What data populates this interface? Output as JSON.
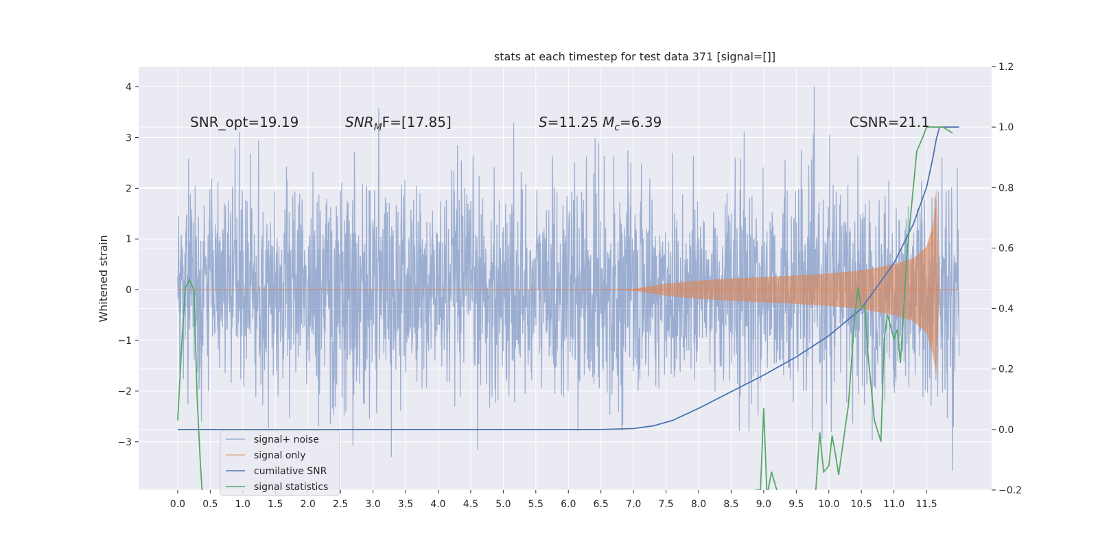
{
  "chart_data": {
    "type": "line",
    "title": "stats at each timestep for test data 371 [signal=[]]",
    "ylabel": "Whitened strain",
    "xlim": [
      -0.6,
      12.5
    ],
    "ylim": [
      -3.95,
      4.4
    ],
    "y2lim": [
      -0.2,
      1.2
    ],
    "xticks": [
      "0.0",
      "0.5",
      "1.0",
      "1.5",
      "2.0",
      "2.5",
      "3.0",
      "3.5",
      "4.0",
      "4.5",
      "5.0",
      "5.5",
      "6.0",
      "6.5",
      "7.0",
      "7.5",
      "8.0",
      "8.5",
      "9.0",
      "9.5",
      "10.0",
      "10.5",
      "11.0",
      "11.5"
    ],
    "yticks": [
      "4",
      "3",
      "2",
      "1",
      "0",
      "−1",
      "−2",
      "−3"
    ],
    "y2ticks": [
      "1.2",
      "1.0",
      "0.8",
      "0.6",
      "0.4",
      "0.2",
      "0.0",
      "−0.2"
    ],
    "grid": true,
    "legend_position": "lower-left",
    "annotations": {
      "snr_opt": "SNR_opt=19.19",
      "snr_mf_main": "SNR",
      "snr_mf_sub": "M",
      "snr_mf_rest": "F=[17.85]",
      "s_main": "S",
      "s_rest": "=11.25 ",
      "mc_main": "M",
      "mc_sub": "c",
      "mc_rest": "=6.39",
      "csnr": "CSNR=21.1"
    },
    "series": [
      {
        "name": "signal+ noise",
        "color": "#4c72b0",
        "opacity": 0.5,
        "axis": "left",
        "description_values": "noise envelope approx ±2.5 with peaks to 4.1"
      },
      {
        "name": "signal only",
        "color": "#dd8452",
        "opacity": 0.6,
        "axis": "left",
        "envelope_x": [
          0,
          6.5,
          7.0,
          7.5,
          8.0,
          8.5,
          9.0,
          9.5,
          10.0,
          10.5,
          11.0,
          11.3,
          11.5,
          11.6,
          11.65,
          11.7,
          12.0
        ],
        "envelope_y": [
          0,
          0,
          0.02,
          0.12,
          0.18,
          0.22,
          0.25,
          0.28,
          0.32,
          0.38,
          0.5,
          0.62,
          0.85,
          1.3,
          2.0,
          0,
          0
        ]
      },
      {
        "name": "cumilative SNR",
        "color": "#4c72b0",
        "opacity": 1,
        "axis": "right",
        "x": [
          0,
          6.5,
          7.0,
          7.3,
          7.6,
          8.0,
          8.5,
          9.0,
          9.5,
          10.0,
          10.5,
          11.0,
          11.3,
          11.5,
          11.6,
          11.65,
          11.7,
          12.0
        ],
        "y": [
          0,
          0,
          0.003,
          0.012,
          0.03,
          0.07,
          0.125,
          0.18,
          0.24,
          0.31,
          0.4,
          0.55,
          0.68,
          0.8,
          0.9,
          0.96,
          1.0,
          1.0
        ]
      },
      {
        "name": "signal statistics",
        "color": "#55a868",
        "opacity": 1,
        "axis": "right",
        "x": [
          0.0,
          0.07,
          0.12,
          0.18,
          0.25,
          0.3,
          0.35,
          0.42,
          8.95,
          9.0,
          9.05,
          9.12,
          9.2,
          9.3,
          9.8,
          9.86,
          9.92,
          10.0,
          10.05,
          10.1,
          10.15,
          10.3,
          10.4,
          10.45,
          10.5,
          10.55,
          10.6,
          10.7,
          10.8,
          10.85,
          10.9,
          11.0,
          11.05,
          11.1,
          11.2,
          11.35,
          11.45,
          11.5,
          11.6,
          11.65,
          11.75,
          11.9
        ],
        "y": [
          0.03,
          0.31,
          0.47,
          0.495,
          0.46,
          0.1,
          -0.12,
          -0.35,
          -0.2,
          0.07,
          -0.22,
          -0.14,
          -0.2,
          -0.35,
          -0.2,
          -0.01,
          -0.14,
          -0.12,
          -0.02,
          -0.08,
          -0.15,
          0.08,
          0.38,
          0.47,
          0.4,
          0.41,
          0.25,
          0.03,
          -0.04,
          0.3,
          0.38,
          0.3,
          0.33,
          0.22,
          0.58,
          0.92,
          0.97,
          1.0,
          1.0,
          1.0,
          1.0,
          0.98
        ]
      }
    ]
  }
}
